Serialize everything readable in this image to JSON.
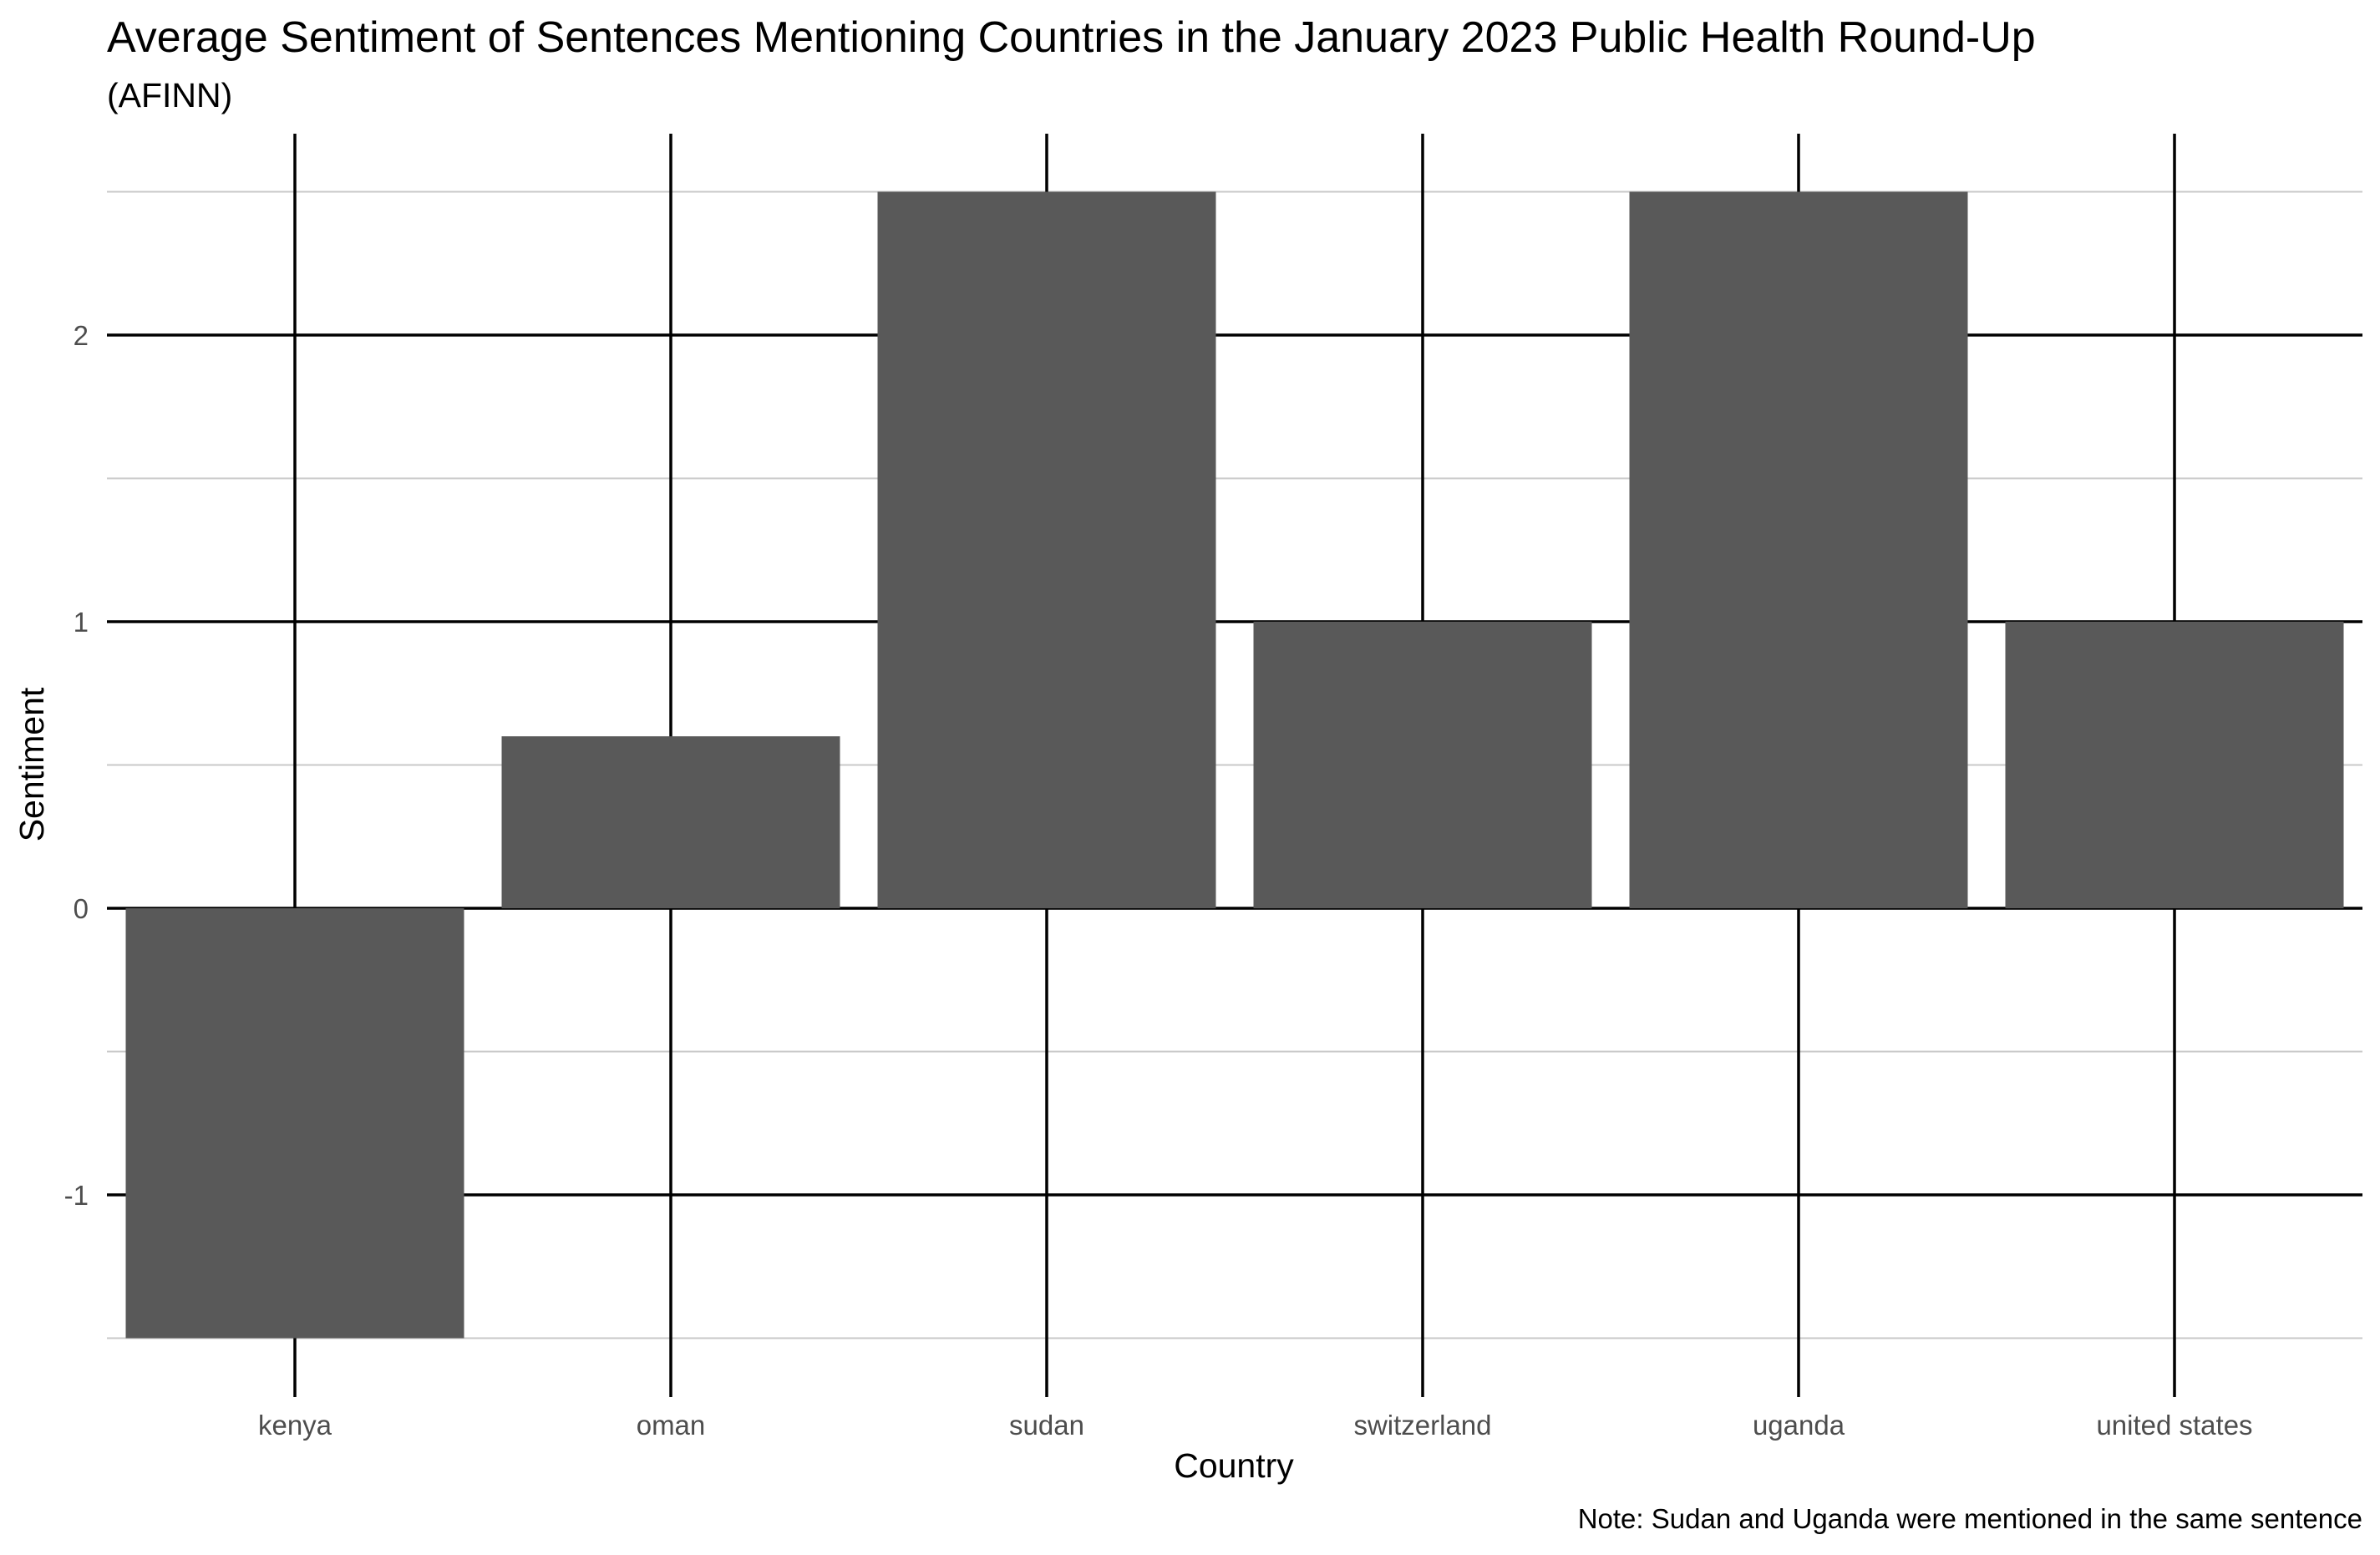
{
  "chart_data": {
    "type": "bar",
    "title": "Average Sentiment of Sentences Mentioning Countries in the January 2023 Public Health Round-Up",
    "subtitle": "(AFINN)",
    "xlabel": "Country",
    "ylabel": "Sentiment",
    "caption": "Note: Sudan and Uganda were mentioned in the same sentence",
    "categories": [
      "kenya",
      "oman",
      "sudan",
      "switzerland",
      "uganda",
      "united states"
    ],
    "values": [
      -1.5,
      0.6,
      2.5,
      1.0,
      2.5,
      1.0
    ],
    "ylim": [
      -1.65,
      2.6
    ],
    "y_ticks": [
      -1,
      0,
      1,
      2
    ],
    "y_tick_labels": [
      "-1",
      "0",
      "1",
      "2"
    ],
    "y_minor_ticks": [
      -1.5,
      -0.5,
      0.5,
      1.5,
      2.5
    ],
    "grid": true,
    "legend": "none",
    "colors": {
      "bar": "#595959",
      "major_grid": "#000000",
      "minor_grid": "#c8c8c8",
      "text": "#000000",
      "tick_text": "#4d4d4d",
      "background": "#ffffff"
    }
  }
}
